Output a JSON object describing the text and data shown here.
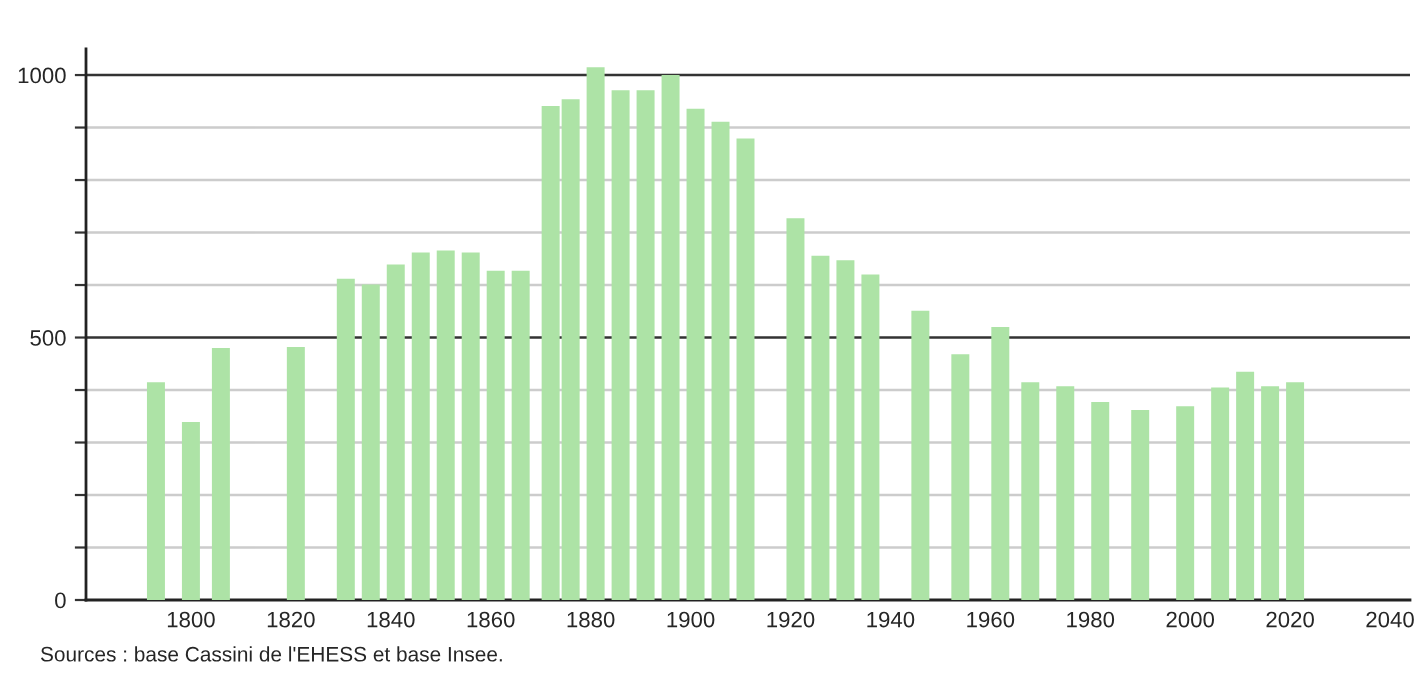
{
  "chart_data": {
    "type": "bar",
    "color": "#ade3a6",
    "x": [
      1793,
      1800,
      1806,
      1821,
      1831,
      1836,
      1841,
      1846,
      1851,
      1856,
      1861,
      1866,
      1872,
      1876,
      1881,
      1886,
      1891,
      1896,
      1901,
      1906,
      1911,
      1921,
      1926,
      1931,
      1936,
      1946,
      1954,
      1962,
      1968,
      1975,
      1982,
      1990,
      1999,
      2006,
      2011,
      2016,
      2021
    ],
    "values": [
      415,
      339,
      480,
      482,
      612,
      601,
      639,
      662,
      666,
      662,
      627,
      627,
      941,
      954,
      1015,
      971,
      971,
      1000,
      936,
      911,
      879,
      727,
      656,
      647,
      620,
      551,
      468,
      520,
      415,
      407,
      377,
      362,
      369,
      405,
      435,
      407,
      415
    ],
    "xlim": [
      1779,
      2044
    ],
    "xticks": [
      1800,
      1820,
      1840,
      1860,
      1880,
      1900,
      1920,
      1940,
      1960,
      1980,
      2000,
      2020,
      2040
    ],
    "ylim": [
      0,
      1050
    ],
    "yticks": [
      0,
      {
        "value": 100,
        "label": null
      },
      {
        "value": 200,
        "label": null
      },
      {
        "value": 300,
        "label": null
      },
      {
        "value": 400,
        "label": null
      },
      500,
      {
        "value": 600,
        "label": null
      },
      {
        "value": 700,
        "label": null
      },
      {
        "value": 800,
        "label": null
      },
      {
        "value": 900,
        "label": null
      },
      1000
    ],
    "grid": "y",
    "annotations": [
      "Sources : base Cassini de l'EHESS et base Insee."
    ]
  }
}
